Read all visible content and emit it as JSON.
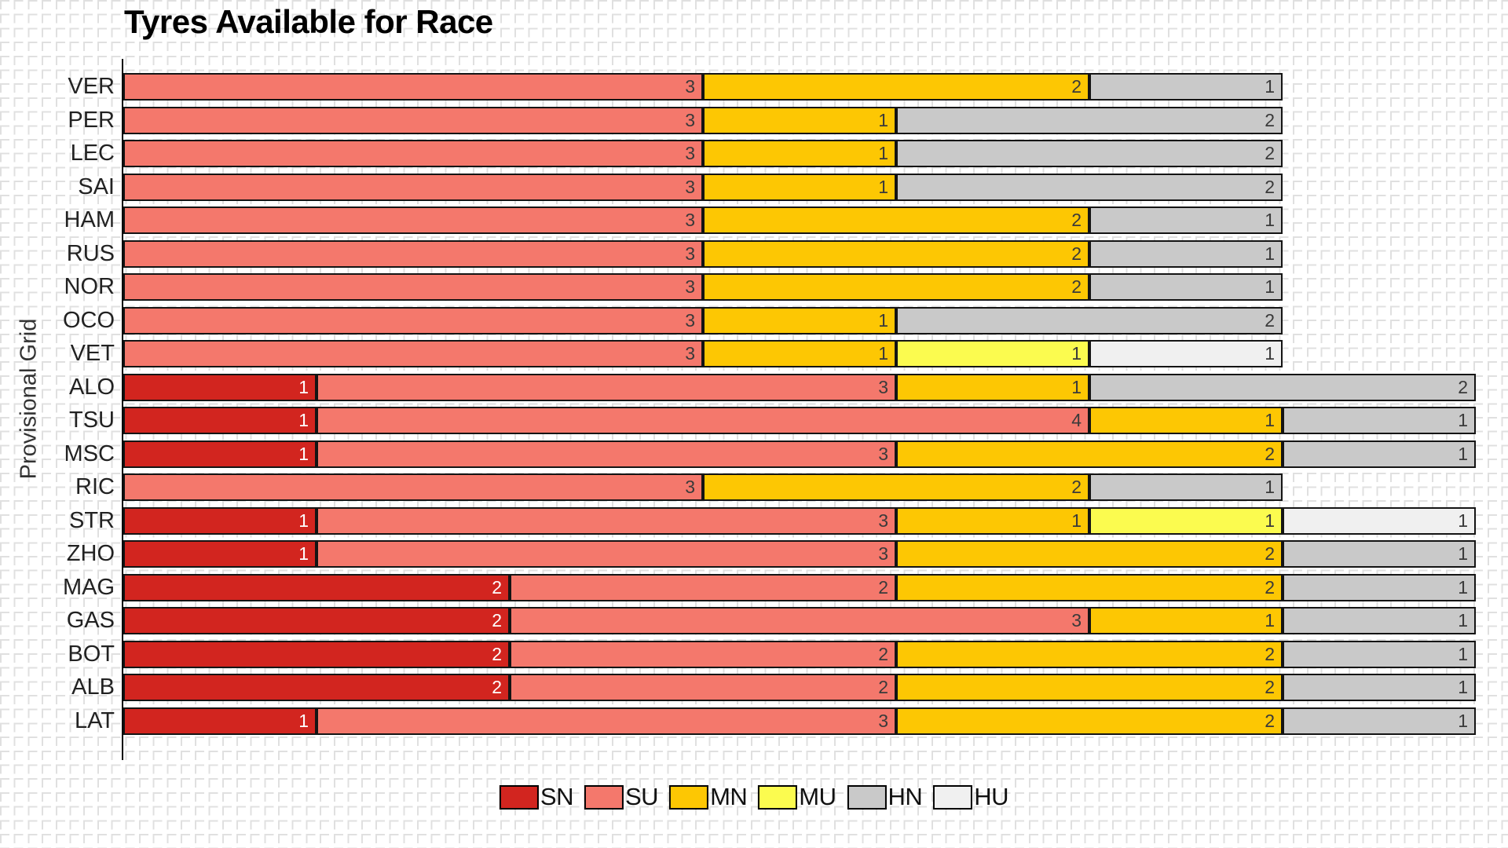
{
  "title": "Tyres Available for Race",
  "ylabel": "Provisional Grid",
  "colors": {
    "SN": "#d2251f",
    "SU": "#f4786c",
    "MN": "#fdc703",
    "MU": "#fbfb4f",
    "HN": "#c9c9c9",
    "HU": "#f0f0f0"
  },
  "chart_data": {
    "type": "bar",
    "orientation": "horizontal",
    "stacked": true,
    "title": "Tyres Available for Race",
    "xlabel": "",
    "ylabel": "Provisional Grid",
    "xlim": [
      0,
      7
    ],
    "grid": "dashed graph-paper background",
    "legend_position": "bottom-center",
    "legend": [
      "SN",
      "SU",
      "MN",
      "MU",
      "HN",
      "HU"
    ],
    "categories": [
      "VER",
      "PER",
      "LEC",
      "SAI",
      "HAM",
      "RUS",
      "NOR",
      "OCO",
      "VET",
      "ALO",
      "TSU",
      "MSC",
      "RIC",
      "STR",
      "ZHO",
      "MAG",
      "GAS",
      "BOT",
      "ALB",
      "LAT"
    ],
    "series": [
      {
        "name": "SN",
        "color": "#d2251f",
        "values": [
          0,
          0,
          0,
          0,
          0,
          0,
          0,
          0,
          0,
          1,
          1,
          1,
          0,
          1,
          1,
          2,
          2,
          2,
          2,
          1
        ]
      },
      {
        "name": "SU",
        "color": "#f4786c",
        "values": [
          3,
          3,
          3,
          3,
          3,
          3,
          3,
          3,
          3,
          3,
          4,
          3,
          3,
          3,
          3,
          2,
          3,
          2,
          2,
          3
        ]
      },
      {
        "name": "MN",
        "color": "#fdc703",
        "values": [
          2,
          1,
          1,
          1,
          2,
          2,
          2,
          1,
          1,
          1,
          1,
          2,
          2,
          1,
          2,
          2,
          1,
          2,
          2,
          2
        ]
      },
      {
        "name": "MU",
        "color": "#fbfb4f",
        "values": [
          0,
          0,
          0,
          0,
          0,
          0,
          0,
          0,
          1,
          0,
          0,
          0,
          0,
          1,
          0,
          0,
          0,
          0,
          0,
          0
        ]
      },
      {
        "name": "HN",
        "color": "#c9c9c9",
        "values": [
          1,
          2,
          2,
          2,
          1,
          1,
          1,
          2,
          0,
          2,
          1,
          1,
          1,
          0,
          1,
          1,
          1,
          1,
          1,
          1
        ]
      },
      {
        "name": "HU",
        "color": "#f0f0f0",
        "values": [
          0,
          0,
          0,
          0,
          0,
          0,
          0,
          0,
          1,
          0,
          0,
          0,
          0,
          1,
          0,
          0,
          0,
          0,
          0,
          0
        ]
      }
    ]
  }
}
